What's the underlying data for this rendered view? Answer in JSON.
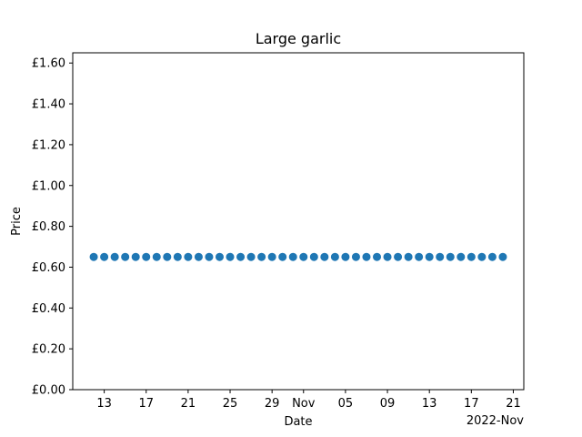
{
  "chart_data": {
    "type": "scatter",
    "title": "Large garlic",
    "xlabel": "Date",
    "ylabel": "Price",
    "x_offset_label": "2022-Nov",
    "x_start": "2022-10-12",
    "x_end": "2022-11-20",
    "xlim": [
      "2022-10-10",
      "2022-11-22"
    ],
    "ylim": [
      0,
      1.65
    ],
    "y_ticks": [
      0.0,
      0.2,
      0.4,
      0.6,
      0.8,
      1.0,
      1.2,
      1.4,
      1.6
    ],
    "y_tick_labels": [
      "£0.00",
      "£0.20",
      "£0.40",
      "£0.60",
      "£0.80",
      "£1.00",
      "£1.20",
      "£1.40",
      "£1.60"
    ],
    "x_ticks": [
      "2022-10-13",
      "2022-10-17",
      "2022-10-21",
      "2022-10-25",
      "2022-10-29",
      "2022-11-01",
      "2022-11-05",
      "2022-11-09",
      "2022-11-13",
      "2022-11-17",
      "2022-11-21"
    ],
    "x_tick_labels": [
      "13",
      "17",
      "21",
      "25",
      "29",
      "Nov",
      "05",
      "09",
      "13",
      "17",
      "21"
    ],
    "y_value": 0.65,
    "marker_color": "#1f77b4",
    "grid": false
  }
}
